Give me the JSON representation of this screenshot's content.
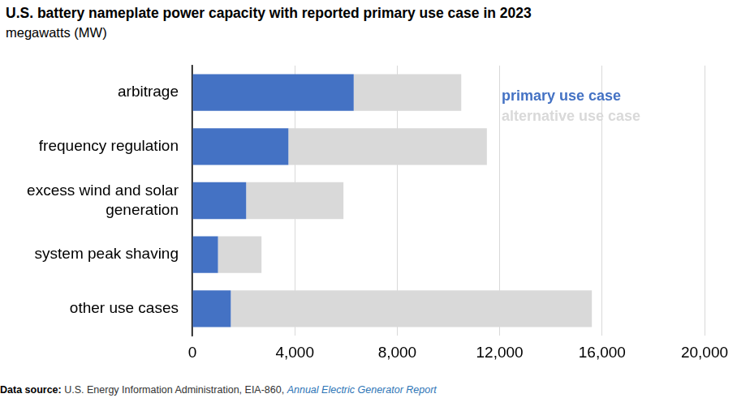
{
  "chart_data": {
    "type": "bar",
    "orientation": "horizontal",
    "stacked": true,
    "title": "U.S. battery nameplate power capacity with reported primary use case in 2023",
    "subtitle": "megawatts (MW)",
    "source": {
      "label": "Data source:",
      "text": "U.S. Energy Information Administration, EIA-860,",
      "link": "Annual Electric Generator Report"
    },
    "categories": [
      "arbitrage",
      "frequency regulation",
      "excess wind and solar generation",
      "system peak shaving",
      "other use cases"
    ],
    "series": [
      {
        "name": "primary use case",
        "color": "#4472c4",
        "values": [
          6300,
          3750,
          2100,
          1000,
          1500
        ]
      },
      {
        "name": "alternative use case",
        "color": "#d9d9d9",
        "values": [
          4200,
          7750,
          3800,
          1700,
          14100
        ]
      }
    ],
    "xlim": [
      0,
      20000
    ],
    "xticks": [
      0,
      {
        "value": 4000,
        "label": "4,000"
      },
      {
        "value": 8000,
        "label": "8,000"
      },
      {
        "value": 12000,
        "label": "12,000"
      },
      {
        "value": 16000,
        "label": "16,000"
      },
      {
        "value": 20000,
        "label": "20,000"
      }
    ],
    "grid": true,
    "legend": "upper right"
  }
}
